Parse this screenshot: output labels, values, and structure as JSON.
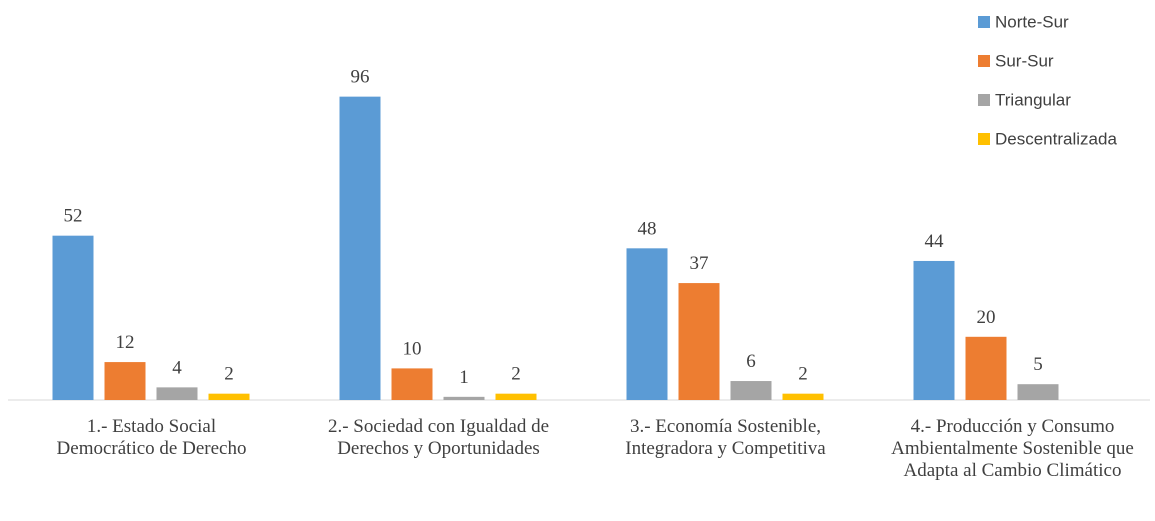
{
  "chart_data": {
    "type": "bar",
    "categories": [
      "1.- Estado Social Democrático de Derecho",
      "2.- Sociedad con Igualdad de Derechos y Oportunidades",
      "3.- Economía Sostenible, Integradora y Competitiva",
      "4.- Producción y Consumo Ambientalmente Sostenible que Adapta al Cambio Climático"
    ],
    "series": [
      {
        "name": "Norte-Sur",
        "color": "#5b9bd5",
        "values": [
          52,
          96,
          48,
          44
        ]
      },
      {
        "name": "Sur-Sur",
        "color": "#ed7d31",
        "values": [
          12,
          10,
          37,
          20
        ]
      },
      {
        "name": "Triangular",
        "color": "#a5a5a5",
        "values": [
          4,
          1,
          6,
          5
        ]
      },
      {
        "name": "Descentralizada",
        "color": "#ffc000",
        "values": [
          2,
          2,
          2,
          null
        ]
      }
    ],
    "ylim": [
      0,
      100
    ],
    "legend": "upper right"
  }
}
